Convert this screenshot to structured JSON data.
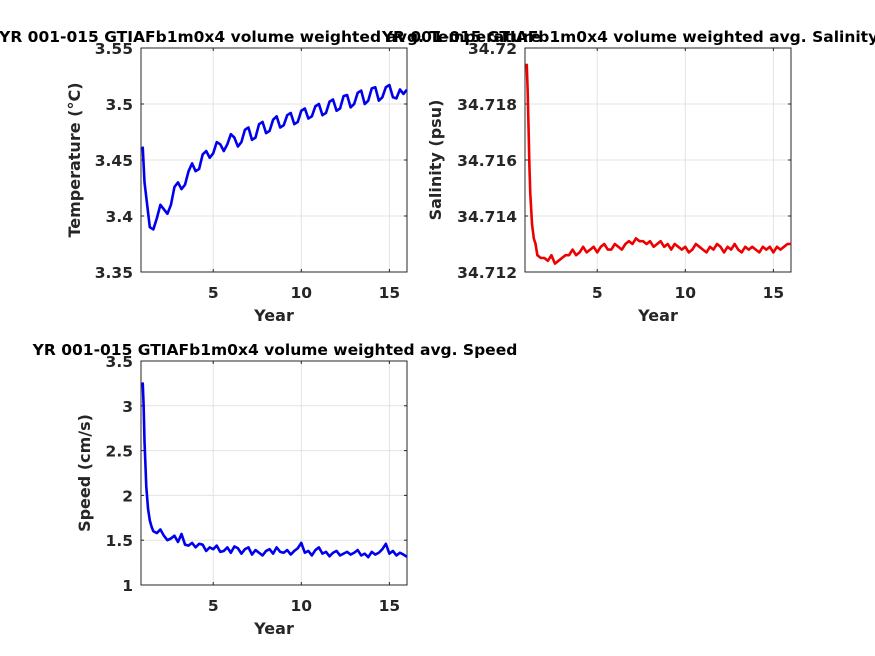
{
  "figure": {
    "background": "#ffffff"
  },
  "chart_data": [
    {
      "type": "line",
      "title": "YR 001-015 GTIAFb1m0x4 volume weighted avg. Temperature",
      "xlabel": "Year",
      "ylabel": "Temperature (°C)",
      "xlim": [
        0.9,
        16
      ],
      "ylim": [
        3.35,
        3.55
      ],
      "xticks": [
        5,
        10,
        15
      ],
      "yticks": [
        3.35,
        3.4,
        3.45,
        3.5,
        3.55
      ],
      "ytick_labels": [
        "3.35",
        "3.4",
        "3.45",
        "3.5",
        "3.55"
      ],
      "grid": true,
      "series": [
        {
          "color": "#0000ee",
          "x": [
            1.0,
            1.1,
            1.25,
            1.4,
            1.6,
            1.8,
            2.0,
            2.2,
            2.4,
            2.6,
            2.8,
            3.0,
            3.2,
            3.4,
            3.6,
            3.8,
            4.0,
            4.2,
            4.4,
            4.6,
            4.8,
            5.0,
            5.2,
            5.4,
            5.6,
            5.8,
            6.0,
            6.2,
            6.4,
            6.6,
            6.8,
            7.0,
            7.2,
            7.4,
            7.6,
            7.8,
            8.0,
            8.2,
            8.4,
            8.6,
            8.8,
            9.0,
            9.2,
            9.4,
            9.6,
            9.8,
            10.0,
            10.2,
            10.4,
            10.6,
            10.8,
            11.0,
            11.2,
            11.4,
            11.6,
            11.8,
            12.0,
            12.2,
            12.4,
            12.6,
            12.8,
            13.0,
            13.2,
            13.4,
            13.6,
            13.8,
            14.0,
            14.2,
            14.4,
            14.6,
            14.8,
            15.0,
            15.2,
            15.4,
            15.6,
            15.8,
            15.95
          ],
          "y": [
            3.461,
            3.43,
            3.41,
            3.39,
            3.388,
            3.398,
            3.41,
            3.406,
            3.402,
            3.41,
            3.426,
            3.43,
            3.424,
            3.428,
            3.44,
            3.447,
            3.44,
            3.442,
            3.455,
            3.458,
            3.452,
            3.456,
            3.466,
            3.464,
            3.458,
            3.464,
            3.473,
            3.47,
            3.462,
            3.466,
            3.477,
            3.479,
            3.468,
            3.47,
            3.482,
            3.484,
            3.474,
            3.476,
            3.486,
            3.489,
            3.479,
            3.481,
            3.49,
            3.492,
            3.482,
            3.484,
            3.494,
            3.496,
            3.487,
            3.489,
            3.498,
            3.5,
            3.49,
            3.492,
            3.502,
            3.504,
            3.494,
            3.496,
            3.507,
            3.508,
            3.497,
            3.5,
            3.51,
            3.512,
            3.5,
            3.503,
            3.514,
            3.515,
            3.503,
            3.506,
            3.515,
            3.517,
            3.506,
            3.505,
            3.513,
            3.509,
            3.512
          ]
        }
      ]
    },
    {
      "type": "line",
      "title": "YR 001-015 GTIAFb1m0x4 volume weighted avg. Salinity",
      "xlabel": "Year",
      "ylabel": "Salinity (psu)",
      "xlim": [
        0.9,
        16
      ],
      "ylim": [
        34.712,
        34.72
      ],
      "xticks": [
        5,
        10,
        15
      ],
      "yticks": [
        34.712,
        34.714,
        34.716,
        34.718,
        34.72
      ],
      "ytick_labels": [
        "34.712",
        "34.714",
        "34.716",
        "34.718",
        "34.72"
      ],
      "grid": true,
      "series": [
        {
          "color": "#ee0000",
          "x": [
            1.0,
            1.05,
            1.1,
            1.15,
            1.2,
            1.3,
            1.4,
            1.5,
            1.6,
            1.8,
            2.0,
            2.2,
            2.4,
            2.6,
            2.8,
            3.0,
            3.2,
            3.4,
            3.6,
            3.8,
            4.0,
            4.2,
            4.4,
            4.6,
            4.8,
            5.0,
            5.2,
            5.4,
            5.6,
            5.8,
            6.0,
            6.2,
            6.4,
            6.6,
            6.8,
            7.0,
            7.2,
            7.4,
            7.6,
            7.8,
            8.0,
            8.2,
            8.4,
            8.6,
            8.8,
            9.0,
            9.2,
            9.4,
            9.6,
            9.8,
            10.0,
            10.2,
            10.4,
            10.6,
            10.8,
            11.0,
            11.2,
            11.4,
            11.6,
            11.8,
            12.0,
            12.2,
            12.4,
            12.6,
            12.8,
            13.0,
            13.2,
            13.4,
            13.6,
            13.8,
            14.0,
            14.2,
            14.4,
            14.6,
            14.8,
            15.0,
            15.2,
            15.4,
            15.6,
            15.8,
            15.95
          ],
          "y": [
            34.7194,
            34.7185,
            34.7172,
            34.7158,
            34.7148,
            34.7137,
            34.7132,
            34.713,
            34.7126,
            34.7125,
            34.7125,
            34.7124,
            34.7126,
            34.7123,
            34.7124,
            34.7125,
            34.7126,
            34.7126,
            34.7128,
            34.7126,
            34.7127,
            34.7129,
            34.7127,
            34.7128,
            34.7129,
            34.7127,
            34.7129,
            34.713,
            34.7128,
            34.7128,
            34.713,
            34.7129,
            34.7128,
            34.713,
            34.7131,
            34.713,
            34.7132,
            34.7131,
            34.7131,
            34.713,
            34.7131,
            34.7129,
            34.713,
            34.7131,
            34.7129,
            34.713,
            34.7128,
            34.713,
            34.7129,
            34.7128,
            34.7129,
            34.7127,
            34.7128,
            34.713,
            34.7129,
            34.7128,
            34.7127,
            34.7129,
            34.7128,
            34.713,
            34.7129,
            34.7127,
            34.7129,
            34.7128,
            34.713,
            34.7128,
            34.7127,
            34.7129,
            34.7128,
            34.7129,
            34.7128,
            34.7127,
            34.7129,
            34.7128,
            34.7129,
            34.7127,
            34.7129,
            34.7128,
            34.7129,
            34.713,
            34.713
          ]
        }
      ]
    },
    {
      "type": "line",
      "title": "YR 001-015 GTIAFb1m0x4 volume weighted avg. Speed",
      "xlabel": "Year",
      "ylabel": "Speed (cm/s)",
      "xlim": [
        0.9,
        16
      ],
      "ylim": [
        1,
        3.5
      ],
      "xticks": [
        5,
        10,
        15
      ],
      "yticks": [
        1,
        1.5,
        2,
        2.5,
        3,
        3.5
      ],
      "ytick_labels": [
        "1",
        "1.5",
        "2",
        "2.5",
        "3",
        "3.5"
      ],
      "grid": true,
      "series": [
        {
          "color": "#0000ee",
          "x": [
            1.0,
            1.05,
            1.1,
            1.2,
            1.3,
            1.4,
            1.5,
            1.6,
            1.8,
            2.0,
            2.2,
            2.4,
            2.6,
            2.8,
            3.0,
            3.2,
            3.4,
            3.6,
            3.8,
            4.0,
            4.2,
            4.4,
            4.6,
            4.8,
            5.0,
            5.2,
            5.4,
            5.6,
            5.8,
            6.0,
            6.2,
            6.4,
            6.6,
            6.8,
            7.0,
            7.2,
            7.4,
            7.6,
            7.8,
            8.0,
            8.2,
            8.4,
            8.6,
            8.8,
            9.0,
            9.2,
            9.4,
            9.6,
            9.8,
            10.0,
            10.2,
            10.4,
            10.6,
            10.8,
            11.0,
            11.2,
            11.4,
            11.6,
            11.8,
            12.0,
            12.2,
            12.4,
            12.6,
            12.8,
            13.0,
            13.2,
            13.4,
            13.6,
            13.8,
            14.0,
            14.2,
            14.4,
            14.6,
            14.8,
            15.0,
            15.2,
            15.4,
            15.6,
            15.8,
            15.95
          ],
          "y": [
            3.25,
            3.0,
            2.6,
            2.1,
            1.85,
            1.72,
            1.65,
            1.6,
            1.58,
            1.62,
            1.55,
            1.5,
            1.52,
            1.55,
            1.48,
            1.57,
            1.45,
            1.44,
            1.47,
            1.42,
            1.46,
            1.45,
            1.38,
            1.42,
            1.4,
            1.44,
            1.37,
            1.38,
            1.42,
            1.36,
            1.43,
            1.41,
            1.35,
            1.4,
            1.42,
            1.34,
            1.39,
            1.36,
            1.33,
            1.38,
            1.4,
            1.35,
            1.42,
            1.37,
            1.36,
            1.39,
            1.34,
            1.38,
            1.41,
            1.47,
            1.36,
            1.38,
            1.33,
            1.39,
            1.42,
            1.35,
            1.37,
            1.32,
            1.36,
            1.38,
            1.33,
            1.35,
            1.37,
            1.34,
            1.36,
            1.39,
            1.33,
            1.35,
            1.31,
            1.37,
            1.34,
            1.36,
            1.4,
            1.46,
            1.35,
            1.38,
            1.33,
            1.36,
            1.34,
            1.32
          ]
        }
      ]
    }
  ]
}
